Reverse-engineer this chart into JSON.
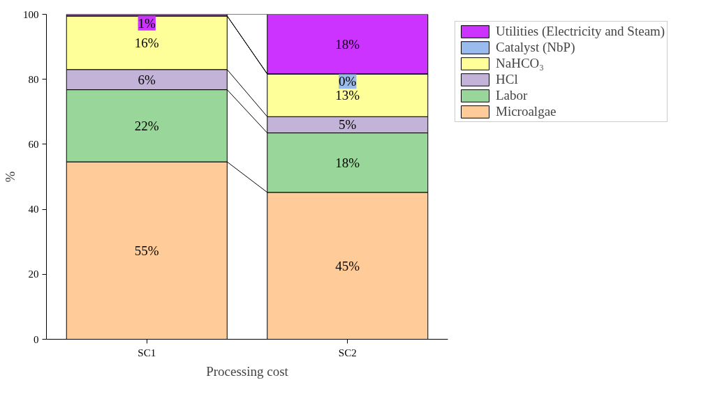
{
  "chart_data": {
    "type": "bar",
    "stacked": true,
    "xlabel": "Processing cost",
    "ylabel": "%",
    "categories": [
      "SC1",
      "SC2"
    ],
    "ylim": [
      0,
      100
    ],
    "yticks": [
      0,
      20,
      40,
      60,
      80,
      100
    ],
    "grid": false,
    "legend": "top right",
    "series": [
      {
        "name": "Microalgae",
        "color": "#ffcc99",
        "values": [
          54.6,
          45.2
        ],
        "value_labels": [
          "55%",
          "45%"
        ]
      },
      {
        "name": "Labor",
        "color": "#99d699",
        "values": [
          22.2,
          18.3
        ],
        "value_labels": [
          "22%",
          "18%"
        ]
      },
      {
        "name": "HCl",
        "color": "#c3b3d9",
        "values": [
          6.2,
          5.0
        ],
        "value_labels": [
          "6%",
          "5%"
        ]
      },
      {
        "name": "NaHCO₃",
        "color": "#ffff99",
        "values": [
          16.5,
          13.1
        ],
        "value_labels": [
          "16%",
          "13%"
        ]
      },
      {
        "name": "Catalyst (NbP)",
        "color": "#99bbee",
        "values": [
          0,
          0.1
        ],
        "value_labels": [
          null,
          "0%"
        ]
      },
      {
        "name": "Utilities (Electricity and Steam)",
        "color": "#cc33ff",
        "values": [
          0.5,
          18.3
        ],
        "value_labels": [
          "1%",
          "18%"
        ]
      }
    ]
  }
}
